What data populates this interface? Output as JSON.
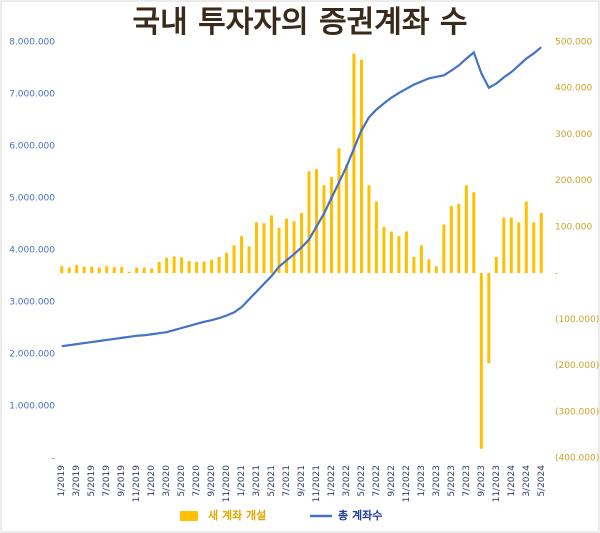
{
  "chart_data": {
    "type": "bar-line",
    "title": "국내 투자자의 증권계좌 수",
    "categories": [
      "1/2019",
      null,
      "3/2019",
      null,
      "5/2019",
      null,
      "7/2019",
      null,
      "9/2019",
      null,
      "11/2019",
      null,
      "1/2020",
      null,
      "3/2020",
      null,
      "5/2020",
      null,
      "7/2020",
      null,
      "9/2020",
      null,
      "11/2020",
      null,
      "1/2021",
      null,
      "3/2021",
      null,
      "5/2021",
      null,
      "7/2021",
      null,
      "9/2021",
      null,
      "11/2021",
      null,
      "1/2022",
      null,
      "3/2022",
      null,
      "5/2022",
      null,
      "7/2022",
      null,
      "9/2022",
      null,
      "11/2022",
      null,
      "1/2023",
      null,
      "3/2023",
      null,
      "5/2023",
      null,
      "7/2023",
      null,
      "9/2023",
      null,
      "11/2023",
      null,
      "1/2024",
      null,
      "3/2024",
      null,
      "5/2024"
    ],
    "series": [
      {
        "name": "새 계좌 개설",
        "color": "#ffc000",
        "axis": "y2",
        "type": "bar",
        "values": [
          15000,
          12000,
          18000,
          14000,
          14000,
          12000,
          15000,
          13000,
          13000,
          3000,
          12000,
          12000,
          10000,
          24000,
          33000,
          36000,
          34000,
          26000,
          24000,
          25000,
          29000,
          35000,
          44000,
          60000,
          80000,
          58000,
          110000,
          108000,
          125000,
          98000,
          118000,
          112000,
          130000,
          220000,
          225000,
          190000,
          208000,
          270000,
          235000,
          475000,
          462000,
          190000,
          155000,
          100000,
          90000,
          80000,
          90000,
          35000,
          60000,
          30000,
          15000,
          105000,
          145000,
          150000,
          190000,
          175000,
          -380000,
          -195000,
          35000,
          120000,
          120000,
          110000,
          155000,
          110000,
          130000
        ]
      },
      {
        "name": "총 계좌수",
        "color": "#4472c4",
        "type": "line",
        "values": [
          2150000,
          2170000,
          2190000,
          2210000,
          2230000,
          2250000,
          2270000,
          2290000,
          2310000,
          2330000,
          2350000,
          2360000,
          2380000,
          2400000,
          2420000,
          2460000,
          2500000,
          2540000,
          2580000,
          2620000,
          2650000,
          2690000,
          2740000,
          2800000,
          2900000,
          3050000,
          3200000,
          3350000,
          3500000,
          3680000,
          3800000,
          3920000,
          4050000,
          4200000,
          4450000,
          4700000,
          5000000,
          5300000,
          5600000,
          5950000,
          6300000,
          6550000,
          6700000,
          6820000,
          6930000,
          7020000,
          7100000,
          7180000,
          7240000,
          7300000,
          7330000,
          7360000,
          7450000,
          7550000,
          7680000,
          7800000,
          7400000,
          7120000,
          7200000,
          7320000,
          7420000,
          7550000,
          7680000,
          7780000,
          7900000
        ]
      }
    ],
    "ylim": [
      0,
      8000000
    ],
    "yticks": [
      {
        "value": 0,
        "label": "-"
      },
      {
        "value": 1000000,
        "label": "1.000.000"
      },
      {
        "value": 2000000,
        "label": "2.000.000"
      },
      {
        "value": 3000000,
        "label": "3.000.000"
      },
      {
        "value": 4000000,
        "label": "4.000.000"
      },
      {
        "value": 5000000,
        "label": "5.000.000"
      },
      {
        "value": 6000000,
        "label": "6.000.000"
      },
      {
        "value": 7000000,
        "label": "7.000.000"
      },
      {
        "value": 8000000,
        "label": "8.000.000"
      }
    ],
    "y2lim": [
      -400000,
      500000
    ],
    "y2ticks": [
      {
        "value": 500000,
        "label": "500.000"
      },
      {
        "value": 400000,
        "label": "400.000"
      },
      {
        "value": 300000,
        "label": "300.000"
      },
      {
        "value": 200000,
        "label": "200.000"
      },
      {
        "value": 100000,
        "label": "100.000"
      },
      {
        "value": 0,
        "label": "-"
      },
      {
        "value": -100000,
        "label": "(100.000)"
      },
      {
        "value": -200000,
        "label": "(200.000)"
      },
      {
        "value": -300000,
        "label": "(300.000)"
      },
      {
        "value": -400000,
        "label": "(400.000)"
      }
    ]
  }
}
